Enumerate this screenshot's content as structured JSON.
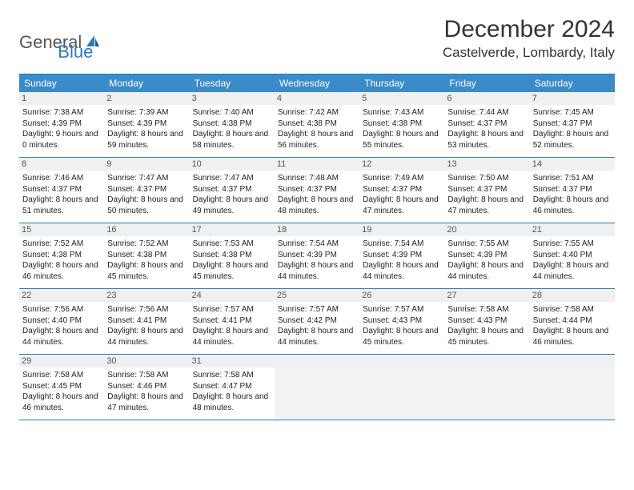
{
  "logo": {
    "text1": "General",
    "text2": "Blue"
  },
  "title": "December 2024",
  "location": "Castelverde, Lombardy, Italy",
  "colors": {
    "header_bg": "#3b8bc9",
    "header_text": "#ffffff",
    "border": "#2b7ac0",
    "daynum_bg": "#eef0f1",
    "empty_bg": "#f2f2f2",
    "logo_gray": "#555555",
    "logo_blue": "#2b7ac0"
  },
  "dayheads": [
    "Sunday",
    "Monday",
    "Tuesday",
    "Wednesday",
    "Thursday",
    "Friday",
    "Saturday"
  ],
  "days": [
    {
      "n": "1",
      "sunrise": "Sunrise: 7:38 AM",
      "sunset": "Sunset: 4:39 PM",
      "daylight": "Daylight: 9 hours and 0 minutes."
    },
    {
      "n": "2",
      "sunrise": "Sunrise: 7:39 AM",
      "sunset": "Sunset: 4:39 PM",
      "daylight": "Daylight: 8 hours and 59 minutes."
    },
    {
      "n": "3",
      "sunrise": "Sunrise: 7:40 AM",
      "sunset": "Sunset: 4:38 PM",
      "daylight": "Daylight: 8 hours and 58 minutes."
    },
    {
      "n": "4",
      "sunrise": "Sunrise: 7:42 AM",
      "sunset": "Sunset: 4:38 PM",
      "daylight": "Daylight: 8 hours and 56 minutes."
    },
    {
      "n": "5",
      "sunrise": "Sunrise: 7:43 AM",
      "sunset": "Sunset: 4:38 PM",
      "daylight": "Daylight: 8 hours and 55 minutes."
    },
    {
      "n": "6",
      "sunrise": "Sunrise: 7:44 AM",
      "sunset": "Sunset: 4:37 PM",
      "daylight": "Daylight: 8 hours and 53 minutes."
    },
    {
      "n": "7",
      "sunrise": "Sunrise: 7:45 AM",
      "sunset": "Sunset: 4:37 PM",
      "daylight": "Daylight: 8 hours and 52 minutes."
    },
    {
      "n": "8",
      "sunrise": "Sunrise: 7:46 AM",
      "sunset": "Sunset: 4:37 PM",
      "daylight": "Daylight: 8 hours and 51 minutes."
    },
    {
      "n": "9",
      "sunrise": "Sunrise: 7:47 AM",
      "sunset": "Sunset: 4:37 PM",
      "daylight": "Daylight: 8 hours and 50 minutes."
    },
    {
      "n": "10",
      "sunrise": "Sunrise: 7:47 AM",
      "sunset": "Sunset: 4:37 PM",
      "daylight": "Daylight: 8 hours and 49 minutes."
    },
    {
      "n": "11",
      "sunrise": "Sunrise: 7:48 AM",
      "sunset": "Sunset: 4:37 PM",
      "daylight": "Daylight: 8 hours and 48 minutes."
    },
    {
      "n": "12",
      "sunrise": "Sunrise: 7:49 AM",
      "sunset": "Sunset: 4:37 PM",
      "daylight": "Daylight: 8 hours and 47 minutes."
    },
    {
      "n": "13",
      "sunrise": "Sunrise: 7:50 AM",
      "sunset": "Sunset: 4:37 PM",
      "daylight": "Daylight: 8 hours and 47 minutes."
    },
    {
      "n": "14",
      "sunrise": "Sunrise: 7:51 AM",
      "sunset": "Sunset: 4:37 PM",
      "daylight": "Daylight: 8 hours and 46 minutes."
    },
    {
      "n": "15",
      "sunrise": "Sunrise: 7:52 AM",
      "sunset": "Sunset: 4:38 PM",
      "daylight": "Daylight: 8 hours and 46 minutes."
    },
    {
      "n": "16",
      "sunrise": "Sunrise: 7:52 AM",
      "sunset": "Sunset: 4:38 PM",
      "daylight": "Daylight: 8 hours and 45 minutes."
    },
    {
      "n": "17",
      "sunrise": "Sunrise: 7:53 AM",
      "sunset": "Sunset: 4:38 PM",
      "daylight": "Daylight: 8 hours and 45 minutes."
    },
    {
      "n": "18",
      "sunrise": "Sunrise: 7:54 AM",
      "sunset": "Sunset: 4:39 PM",
      "daylight": "Daylight: 8 hours and 44 minutes."
    },
    {
      "n": "19",
      "sunrise": "Sunrise: 7:54 AM",
      "sunset": "Sunset: 4:39 PM",
      "daylight": "Daylight: 8 hours and 44 minutes."
    },
    {
      "n": "20",
      "sunrise": "Sunrise: 7:55 AM",
      "sunset": "Sunset: 4:39 PM",
      "daylight": "Daylight: 8 hours and 44 minutes."
    },
    {
      "n": "21",
      "sunrise": "Sunrise: 7:55 AM",
      "sunset": "Sunset: 4:40 PM",
      "daylight": "Daylight: 8 hours and 44 minutes."
    },
    {
      "n": "22",
      "sunrise": "Sunrise: 7:56 AM",
      "sunset": "Sunset: 4:40 PM",
      "daylight": "Daylight: 8 hours and 44 minutes."
    },
    {
      "n": "23",
      "sunrise": "Sunrise: 7:56 AM",
      "sunset": "Sunset: 4:41 PM",
      "daylight": "Daylight: 8 hours and 44 minutes."
    },
    {
      "n": "24",
      "sunrise": "Sunrise: 7:57 AM",
      "sunset": "Sunset: 4:41 PM",
      "daylight": "Daylight: 8 hours and 44 minutes."
    },
    {
      "n": "25",
      "sunrise": "Sunrise: 7:57 AM",
      "sunset": "Sunset: 4:42 PM",
      "daylight": "Daylight: 8 hours and 44 minutes."
    },
    {
      "n": "26",
      "sunrise": "Sunrise: 7:57 AM",
      "sunset": "Sunset: 4:43 PM",
      "daylight": "Daylight: 8 hours and 45 minutes."
    },
    {
      "n": "27",
      "sunrise": "Sunrise: 7:58 AM",
      "sunset": "Sunset: 4:43 PM",
      "daylight": "Daylight: 8 hours and 45 minutes."
    },
    {
      "n": "28",
      "sunrise": "Sunrise: 7:58 AM",
      "sunset": "Sunset: 4:44 PM",
      "daylight": "Daylight: 8 hours and 46 minutes."
    },
    {
      "n": "29",
      "sunrise": "Sunrise: 7:58 AM",
      "sunset": "Sunset: 4:45 PM",
      "daylight": "Daylight: 8 hours and 46 minutes."
    },
    {
      "n": "30",
      "sunrise": "Sunrise: 7:58 AM",
      "sunset": "Sunset: 4:46 PM",
      "daylight": "Daylight: 8 hours and 47 minutes."
    },
    {
      "n": "31",
      "sunrise": "Sunrise: 7:58 AM",
      "sunset": "Sunset: 4:47 PM",
      "daylight": "Daylight: 8 hours and 48 minutes."
    }
  ],
  "trailing_empty": 4
}
